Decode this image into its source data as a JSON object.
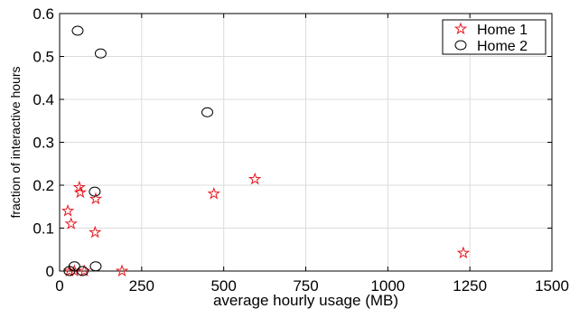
{
  "chart_data": {
    "type": "scatter",
    "title": "",
    "xlabel": "average hourly usage (MB)",
    "ylabel": "fraction of  interactive  hours",
    "xlim": [
      0,
      1500
    ],
    "ylim": [
      0,
      0.6
    ],
    "xticks": [
      0,
      250,
      500,
      750,
      1000,
      1250,
      1500
    ],
    "yticks": [
      0,
      0.1,
      0.2,
      0.3,
      0.4,
      0.5,
      0.6
    ],
    "xtick_labels": [
      "0",
      "250",
      "500",
      "750",
      "1000",
      "1250",
      "1500"
    ],
    "ytick_labels": [
      "0",
      "0.1",
      "0.2",
      "0.3",
      "0.4",
      "0.5",
      "0.6"
    ],
    "grid": true,
    "legend_position": "top-right",
    "series": [
      {
        "name": "Home 1",
        "marker": "star",
        "color": "#e8141c",
        "points": [
          {
            "x": 25,
            "y": 0.14
          },
          {
            "x": 35,
            "y": 0.11
          },
          {
            "x": 60,
            "y": 0.195
          },
          {
            "x": 63,
            "y": 0.183
          },
          {
            "x": 110,
            "y": 0.168
          },
          {
            "x": 108,
            "y": 0.09
          },
          {
            "x": 30,
            "y": 0.0
          },
          {
            "x": 45,
            "y": 0.0
          },
          {
            "x": 75,
            "y": 0.0
          },
          {
            "x": 190,
            "y": 0.0
          },
          {
            "x": 470,
            "y": 0.18
          },
          {
            "x": 595,
            "y": 0.214
          },
          {
            "x": 1230,
            "y": 0.042
          }
        ]
      },
      {
        "name": "Home 2",
        "marker": "circle",
        "color": "#000000",
        "points": [
          {
            "x": 55,
            "y": 0.56
          },
          {
            "x": 125,
            "y": 0.507
          },
          {
            "x": 450,
            "y": 0.37
          },
          {
            "x": 107,
            "y": 0.185
          },
          {
            "x": 110,
            "y": 0.011
          },
          {
            "x": 45,
            "y": 0.011
          },
          {
            "x": 30,
            "y": 0.0
          },
          {
            "x": 70,
            "y": 0.0
          }
        ]
      }
    ]
  }
}
